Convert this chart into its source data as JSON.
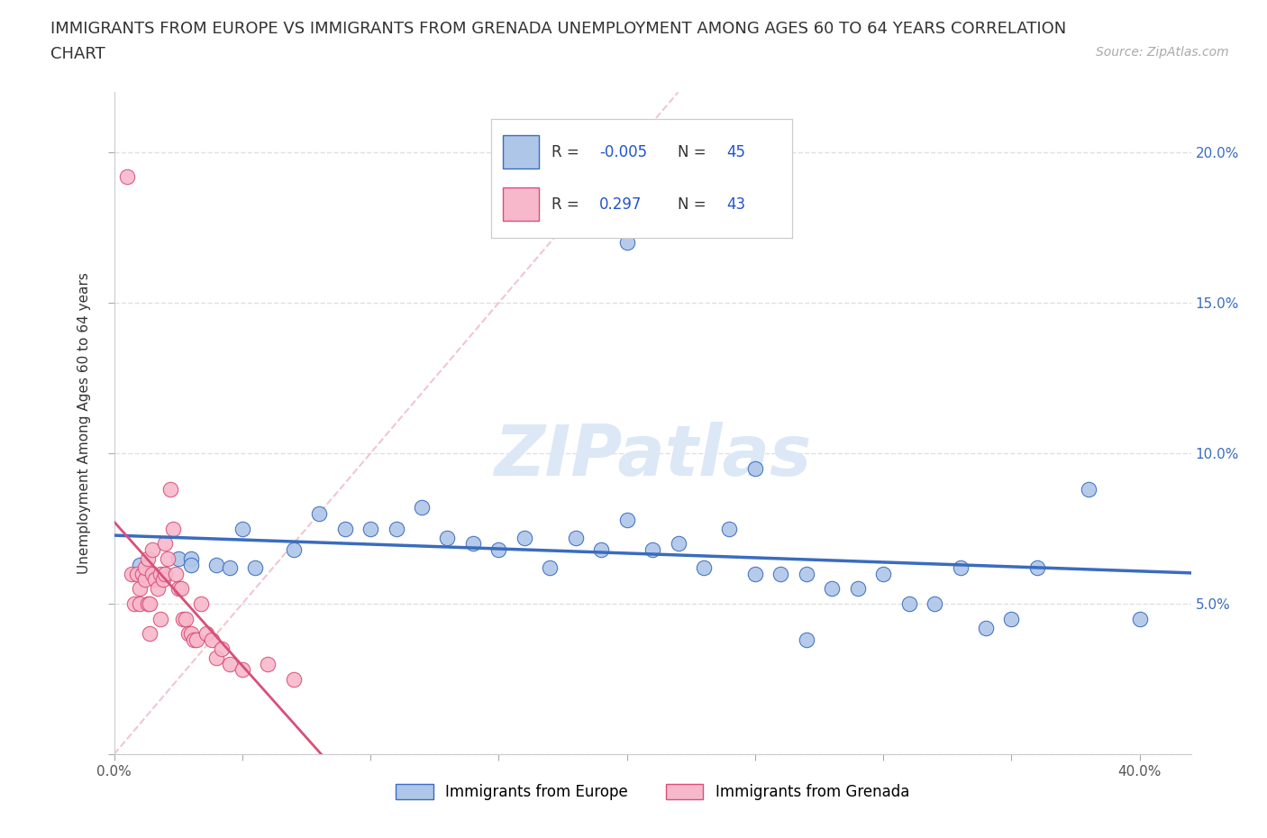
{
  "title_line1": "IMMIGRANTS FROM EUROPE VS IMMIGRANTS FROM GRENADA UNEMPLOYMENT AMONG AGES 60 TO 64 YEARS CORRELATION",
  "title_line2": "CHART",
  "source": "Source: ZipAtlas.com",
  "ylabel": "Unemployment Among Ages 60 to 64 years",
  "xlim": [
    0.0,
    0.42
  ],
  "ylim": [
    0.0,
    0.22
  ],
  "xticks": [
    0.0,
    0.05,
    0.1,
    0.15,
    0.2,
    0.25,
    0.3,
    0.35,
    0.4
  ],
  "yticks": [
    0.0,
    0.05,
    0.1,
    0.15,
    0.2
  ],
  "legend_R_europe": "-0.005",
  "legend_N_europe": "45",
  "legend_R_grenada": "0.297",
  "legend_N_grenada": "43",
  "europe_color": "#aec6e8",
  "grenada_color": "#f7b8cb",
  "europe_line_color": "#3a6cbf",
  "grenada_line_color": "#d94f7a",
  "watermark_color": "#dce8f5",
  "blue_scatter_x": [
    0.01,
    0.015,
    0.02,
    0.025,
    0.03,
    0.03,
    0.04,
    0.045,
    0.05,
    0.055,
    0.07,
    0.08,
    0.09,
    0.1,
    0.11,
    0.12,
    0.13,
    0.14,
    0.15,
    0.16,
    0.17,
    0.18,
    0.19,
    0.2,
    0.21,
    0.22,
    0.23,
    0.24,
    0.25,
    0.26,
    0.27,
    0.28,
    0.29,
    0.3,
    0.31,
    0.32,
    0.33,
    0.34,
    0.35,
    0.36,
    0.25,
    0.2,
    0.38,
    0.4,
    0.27
  ],
  "blue_scatter_y": [
    0.063,
    0.06,
    0.06,
    0.065,
    0.065,
    0.063,
    0.063,
    0.062,
    0.075,
    0.062,
    0.068,
    0.08,
    0.075,
    0.075,
    0.075,
    0.082,
    0.072,
    0.07,
    0.068,
    0.072,
    0.062,
    0.072,
    0.068,
    0.078,
    0.068,
    0.07,
    0.062,
    0.075,
    0.06,
    0.06,
    0.06,
    0.055,
    0.055,
    0.06,
    0.05,
    0.05,
    0.062,
    0.042,
    0.045,
    0.062,
    0.095,
    0.17,
    0.088,
    0.045,
    0.038
  ],
  "pink_scatter_x": [
    0.005,
    0.007,
    0.008,
    0.009,
    0.01,
    0.01,
    0.011,
    0.012,
    0.012,
    0.013,
    0.013,
    0.014,
    0.014,
    0.015,
    0.015,
    0.016,
    0.017,
    0.018,
    0.018,
    0.019,
    0.02,
    0.02,
    0.021,
    0.022,
    0.023,
    0.024,
    0.025,
    0.026,
    0.027,
    0.028,
    0.029,
    0.03,
    0.031,
    0.032,
    0.034,
    0.036,
    0.038,
    0.04,
    0.042,
    0.045,
    0.05,
    0.06,
    0.07
  ],
  "pink_scatter_y": [
    0.192,
    0.06,
    0.05,
    0.06,
    0.055,
    0.05,
    0.06,
    0.058,
    0.062,
    0.065,
    0.05,
    0.04,
    0.05,
    0.068,
    0.06,
    0.058,
    0.055,
    0.045,
    0.06,
    0.058,
    0.06,
    0.07,
    0.065,
    0.088,
    0.075,
    0.06,
    0.055,
    0.055,
    0.045,
    0.045,
    0.04,
    0.04,
    0.038,
    0.038,
    0.05,
    0.04,
    0.038,
    0.032,
    0.035,
    0.03,
    0.028,
    0.03,
    0.025
  ],
  "background_color": "#ffffff",
  "grid_color": "#e0e0e0",
  "title_fontsize": 13,
  "axis_label_fontsize": 11,
  "tick_fontsize": 11,
  "right_tick_color": "#3a6cbf"
}
